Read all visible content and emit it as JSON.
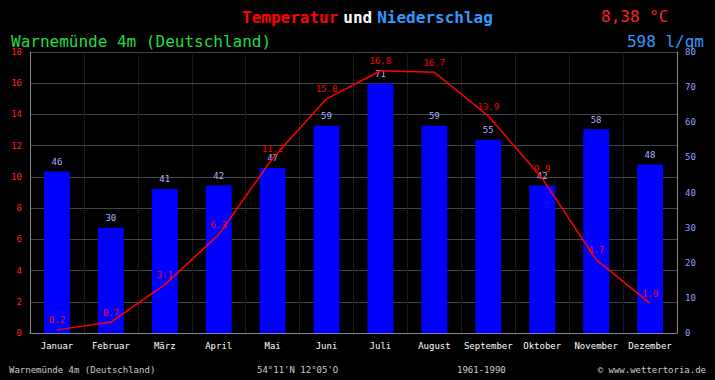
{
  "chart_data": {
    "type": "bar",
    "title": "Temperatur und Niederschlag",
    "subtitle": "Warnemünde 4m (Deutschland)",
    "annotations": {
      "mean_temperature": "8,38 °C",
      "precipitation_total": "598 l/qm",
      "footer": [
        "Warnemünde 4m (Deutschland)",
        "54°11'N 12°05'O",
        "1961-1990",
        "© www.wettertoria.de"
      ]
    },
    "categories": [
      "Januar",
      "Februar",
      "März",
      "April",
      "Mai",
      "Juni",
      "Juli",
      "August",
      "September",
      "Oktober",
      "November",
      "Dezember"
    ],
    "series": [
      {
        "name": "Niederschlag",
        "type": "bar",
        "color": "#0000ff",
        "axis": "y2",
        "values": [
          46,
          30,
          41,
          42,
          47,
          59,
          71,
          59,
          55,
          42,
          58,
          48
        ]
      },
      {
        "name": "Temperatur",
        "type": "line",
        "color": "#ff0000",
        "values": [
          0.2,
          0.7,
          3.1,
          6.3,
          11.2,
          15.0,
          16.8,
          16.7,
          13.9,
          9.9,
          4.7,
          1.9
        ],
        "value_labels": [
          "0.2",
          "0.7",
          "3.1",
          "6.3",
          "11.2",
          "15.0",
          "16.8",
          "16.7",
          "13.9",
          "9.9",
          "4.7",
          "1.9"
        ]
      }
    ],
    "ylim": [
      0,
      18
    ],
    "yticks": [
      0,
      2,
      4,
      6,
      8,
      10,
      12,
      14,
      16,
      18
    ],
    "y2lim": [
      0,
      80
    ],
    "y2ticks": [
      0,
      10,
      20,
      30,
      40,
      50,
      60,
      70,
      80
    ],
    "grid": true,
    "data_labels": true
  }
}
